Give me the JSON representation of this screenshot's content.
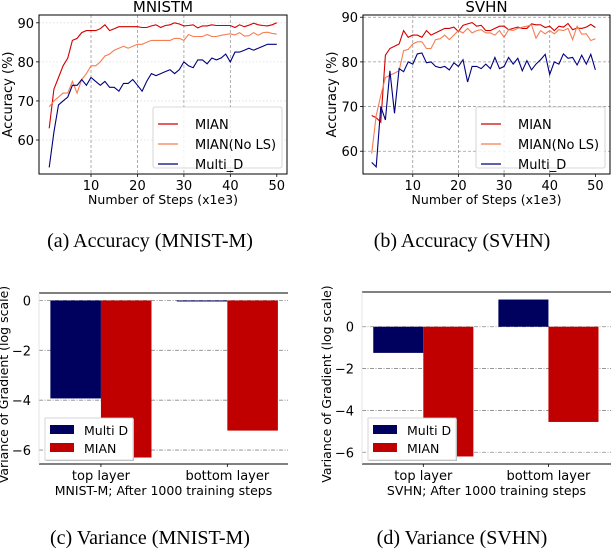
{
  "chart_data": [
    {
      "type": "line",
      "title": "MNISTM",
      "caption": "(a) Accuracy (MNIST-M)",
      "xlabel": "Number of Steps (x1e3)",
      "ylabel": "Accuracy (%)",
      "xlim": [
        -1.2,
        52.2
      ],
      "ylim": [
        51.3,
        92
      ],
      "xticks": [
        10,
        20,
        30,
        40,
        50
      ],
      "yticks": [
        60,
        70,
        80,
        90
      ],
      "grid": true,
      "legend_position": "lower-right",
      "x": [
        1,
        2,
        3,
        4,
        5,
        6,
        7,
        8,
        9,
        10,
        11,
        12,
        13,
        14,
        15,
        16,
        17,
        18,
        19,
        20,
        21,
        22,
        23,
        24,
        25,
        26,
        27,
        28,
        29,
        30,
        31,
        32,
        33,
        34,
        35,
        36,
        37,
        38,
        39,
        40,
        41,
        42,
        43,
        44,
        45,
        46,
        47,
        48,
        49,
        50
      ],
      "series": [
        {
          "name": "MIAN",
          "color": "#d00000",
          "values": [
            63,
            73,
            76,
            79,
            81,
            85.5,
            86,
            87.5,
            88,
            88,
            88,
            88.5,
            89.5,
            88,
            88.5,
            89,
            89,
            89,
            89,
            89,
            88.8,
            88.8,
            89.2,
            89.5,
            88.8,
            89.3,
            89.5,
            90,
            89.7,
            89.2,
            89.3,
            89.5,
            88.7,
            89.2,
            89.2,
            89.5,
            89.3,
            89.3,
            89.3,
            89.3,
            88.8,
            89.5,
            89,
            89.4,
            89.9,
            89.5,
            89.3,
            89.2,
            89.5,
            90
          ]
        },
        {
          "name": "MIAN(No LS)",
          "color": "#f87c50",
          "values": [
            68.5,
            70,
            71,
            72,
            72,
            75,
            72,
            75.5,
            77,
            79,
            79,
            80,
            81.5,
            82,
            83,
            83.5,
            84,
            83.5,
            84,
            84.5,
            84.5,
            85,
            85.5,
            85.5,
            85.5,
            85.5,
            85.5,
            86,
            86,
            85.5,
            87,
            86.5,
            86.5,
            86.5,
            87,
            86.5,
            86.5,
            86.8,
            87,
            87.2,
            86.9,
            87.5,
            86.6,
            86.7,
            87.5,
            86.8,
            87.5,
            87.6,
            87.3,
            87.1
          ]
        },
        {
          "name": "Multi_D",
          "color": "#000080",
          "values": [
            53,
            62,
            69,
            70,
            71,
            74,
            74,
            75.5,
            74,
            76,
            75,
            74,
            75,
            73.5,
            73.5,
            72.5,
            74.5,
            74.5,
            75.5,
            74,
            72.5,
            75,
            77,
            76.5,
            77,
            77.5,
            78,
            77,
            78,
            80,
            79,
            78.5,
            80.5,
            80.5,
            79.5,
            81,
            80.5,
            81,
            82,
            80,
            82.5,
            82.5,
            83,
            83.5,
            83,
            83.5,
            84,
            84.5,
            84.5,
            84.5
          ]
        }
      ]
    },
    {
      "type": "line",
      "title": "SVHN",
      "caption": "(b) Accuracy (SVHN)",
      "xlabel": "Number of Steps (x1e3)",
      "ylabel": "Accuracy (%)",
      "xlim": [
        -0.9,
        53.2
      ],
      "ylim": [
        54.9,
        90.5
      ],
      "xticks": [
        10,
        20,
        30,
        40,
        50
      ],
      "yticks": [
        60,
        70,
        80,
        90
      ],
      "grid": true,
      "legend_position": "lower-right",
      "x": [
        1,
        2,
        3,
        4,
        5,
        6,
        7,
        8,
        9,
        10,
        11,
        12,
        13,
        14,
        15,
        16,
        17,
        18,
        19,
        20,
        21,
        22,
        23,
        24,
        25,
        26,
        27,
        28,
        29,
        30,
        31,
        32,
        33,
        34,
        35,
        36,
        37,
        38,
        39,
        40,
        41,
        42,
        43,
        44,
        45,
        46,
        47,
        48,
        49,
        50
      ],
      "series": [
        {
          "name": "MIAN",
          "color": "#d00000",
          "values": [
            68,
            67.5,
            66.5,
            81.5,
            83,
            83.5,
            84,
            87,
            85.5,
            86,
            86,
            85.5,
            87,
            86,
            86.5,
            87,
            87.5,
            87.5,
            87.8,
            86.8,
            88.2,
            88.5,
            88.8,
            88,
            88.2,
            87,
            87,
            87.5,
            88,
            88,
            87.2,
            87.5,
            87.8,
            87.5,
            87.5,
            88.5,
            88.3,
            88.3,
            87.7,
            88,
            87,
            88,
            87.8,
            88.6,
            87.2,
            87.6,
            87.5,
            87.8,
            88.4,
            87.7
          ]
        },
        {
          "name": "MIAN(No LS)",
          "color": "#f87c50",
          "values": [
            59.5,
            68,
            72.5,
            76.5,
            77,
            77.5,
            78,
            82.5,
            82.8,
            84,
            84.5,
            84.5,
            83,
            83,
            85,
            85.2,
            86,
            85,
            86,
            87,
            86.5,
            87.5,
            86.5,
            87,
            87.2,
            86.5,
            86.5,
            86,
            87,
            85.5,
            87.2,
            87,
            87.5,
            87.8,
            88,
            88.3,
            85.3,
            87,
            86.3,
            87,
            86.3,
            87.2,
            87,
            87.5,
            85,
            88,
            86.2,
            86.3,
            84.8,
            85.2
          ]
        },
        {
          "name": "Multi_D",
          "color": "#000080",
          "values": [
            57.5,
            56.5,
            70,
            67,
            78,
            68.5,
            78.5,
            77.8,
            80,
            79.5,
            81.8,
            82,
            79.8,
            80,
            79,
            78.7,
            79,
            78.2,
            79.8,
            79,
            80.5,
            75.5,
            79,
            79,
            78.5,
            79.5,
            78.5,
            81,
            78.5,
            79,
            81,
            79.5,
            80.8,
            78,
            80.3,
            78.2,
            79.5,
            80.5,
            81.7,
            77.2,
            80,
            79.5,
            81.8,
            80.8,
            81,
            79.3,
            81.5,
            79.5,
            81.7,
            78.2
          ]
        }
      ]
    },
    {
      "type": "bar",
      "caption": "(c) Variance (MNIST-M)",
      "xlabel": "MNIST-M; After 1000 training steps",
      "ylabel": "Variance of Gradient (log scale)",
      "categories": [
        "top layer",
        "bottom layer"
      ],
      "xlim": [
        -0.49,
        1.48
      ],
      "ylim": [
        -6.56,
        0.3
      ],
      "yticks": [
        0,
        -2,
        -4,
        -6
      ],
      "ytick_labels": [
        "0",
        "−2",
        "−4",
        "−6"
      ],
      "grid": true,
      "legend_position": "lower-left",
      "series": [
        {
          "name": "Multi D",
          "color": "#00005f",
          "values": [
            -3.93,
            -0.02
          ]
        },
        {
          "name": "MIAN",
          "color": "#c00000",
          "values": [
            -6.3,
            -5.22
          ]
        }
      ]
    },
    {
      "type": "bar",
      "caption": "(d) Variance (SVHN)",
      "xlabel": "SVHN; After 1000 training steps",
      "ylabel": "Variance of Gradient (log scale)",
      "categories": [
        "top layer",
        "bottom layer"
      ],
      "xlim": [
        -0.49,
        1.5
      ],
      "ylim": [
        -6.56,
        1.66
      ],
      "yticks": [
        0,
        -2,
        -4,
        -6
      ],
      "ytick_labels": [
        "0",
        "−2",
        "−4",
        "−6"
      ],
      "grid": true,
      "legend_position": "lower-left",
      "series": [
        {
          "name": "Multi D",
          "color": "#00005f",
          "values": [
            -1.25,
            1.3
          ]
        },
        {
          "name": "MIAN",
          "color": "#c00000",
          "values": [
            -6.2,
            -4.55
          ]
        }
      ]
    }
  ]
}
